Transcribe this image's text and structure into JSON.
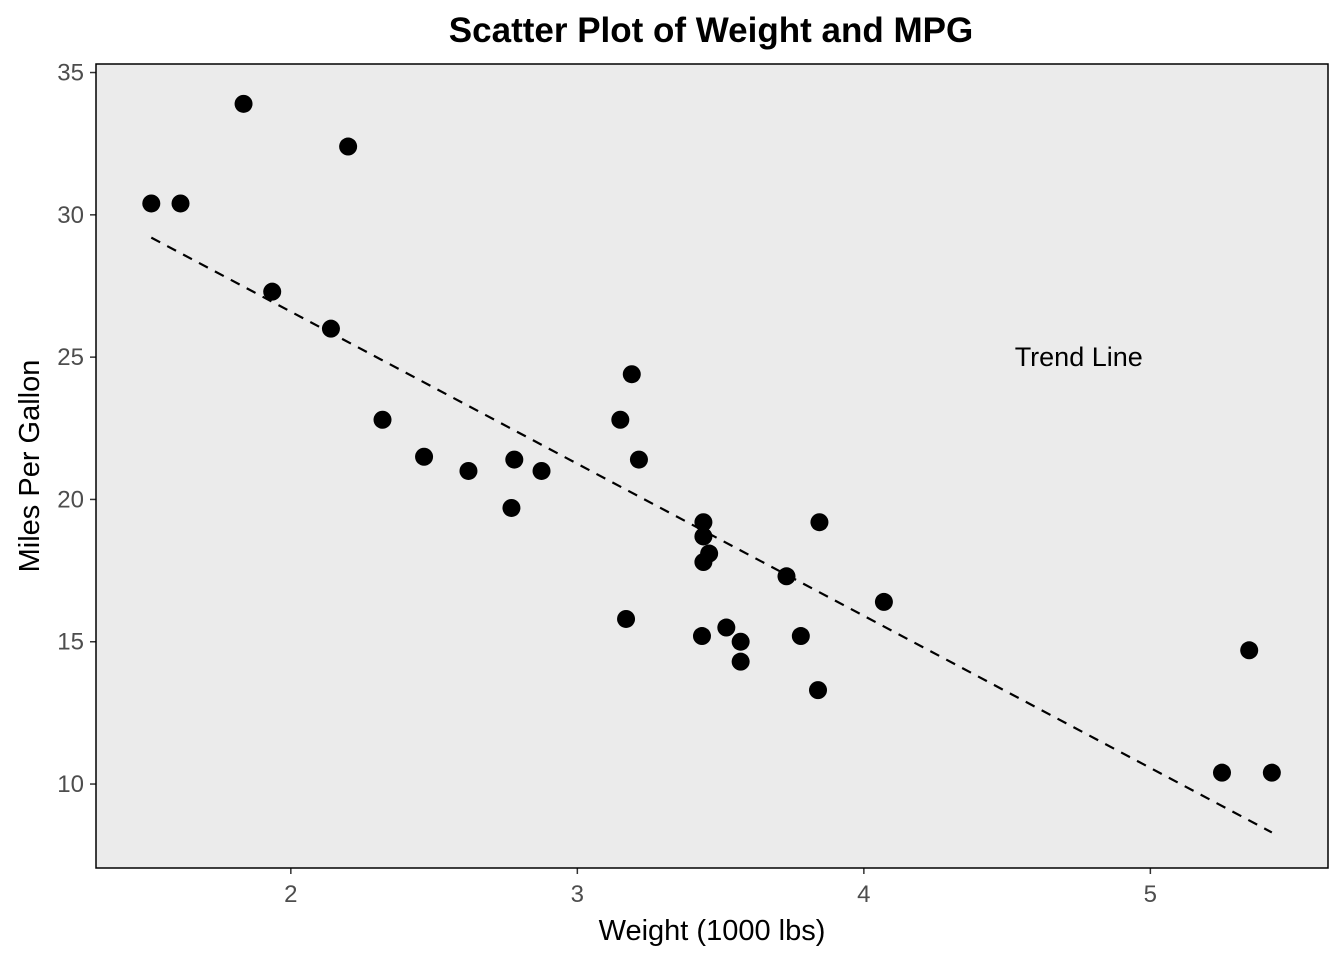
{
  "chart_data": {
    "type": "scatter",
    "title": "Scatter Plot of Weight and MPG",
    "xlabel": "Weight (1000 lbs)",
    "ylabel": "Miles Per Gallon",
    "xlim": [
      1.32,
      5.62
    ],
    "ylim": [
      7.05,
      35.3
    ],
    "xticks": [
      2,
      3,
      4,
      5
    ],
    "yticks": [
      10,
      15,
      20,
      25,
      30,
      35
    ],
    "grid": false,
    "panel_background": "#ebebeb",
    "point_color": "#000000",
    "points": [
      {
        "x": 1.513,
        "y": 30.4
      },
      {
        "x": 1.615,
        "y": 30.4
      },
      {
        "x": 1.835,
        "y": 33.9
      },
      {
        "x": 1.935,
        "y": 27.3
      },
      {
        "x": 2.14,
        "y": 26.0
      },
      {
        "x": 2.2,
        "y": 32.4
      },
      {
        "x": 2.32,
        "y": 22.8
      },
      {
        "x": 2.465,
        "y": 21.5
      },
      {
        "x": 2.62,
        "y": 21.0
      },
      {
        "x": 2.77,
        "y": 19.7
      },
      {
        "x": 2.78,
        "y": 21.4
      },
      {
        "x": 2.875,
        "y": 21.0
      },
      {
        "x": 3.15,
        "y": 22.8
      },
      {
        "x": 3.17,
        "y": 15.8
      },
      {
        "x": 3.19,
        "y": 24.4
      },
      {
        "x": 3.215,
        "y": 21.4
      },
      {
        "x": 3.435,
        "y": 15.2
      },
      {
        "x": 3.44,
        "y": 18.7
      },
      {
        "x": 3.44,
        "y": 17.8
      },
      {
        "x": 3.44,
        "y": 19.2
      },
      {
        "x": 3.46,
        "y": 18.1
      },
      {
        "x": 3.52,
        "y": 15.5
      },
      {
        "x": 3.57,
        "y": 15.0
      },
      {
        "x": 3.57,
        "y": 14.3
      },
      {
        "x": 3.73,
        "y": 17.3
      },
      {
        "x": 3.78,
        "y": 15.2
      },
      {
        "x": 3.84,
        "y": 13.3
      },
      {
        "x": 3.845,
        "y": 19.2
      },
      {
        "x": 4.07,
        "y": 16.4
      },
      {
        "x": 5.25,
        "y": 10.4
      },
      {
        "x": 5.345,
        "y": 14.7
      },
      {
        "x": 5.424,
        "y": 10.4
      }
    ],
    "trend_line": {
      "style": "dashed",
      "x": [
        1.513,
        5.424
      ],
      "y": [
        29.2,
        8.3
      ]
    },
    "annotations": [
      {
        "text": "Trend Line",
        "x": 4.75,
        "y": 25.0
      }
    ]
  }
}
